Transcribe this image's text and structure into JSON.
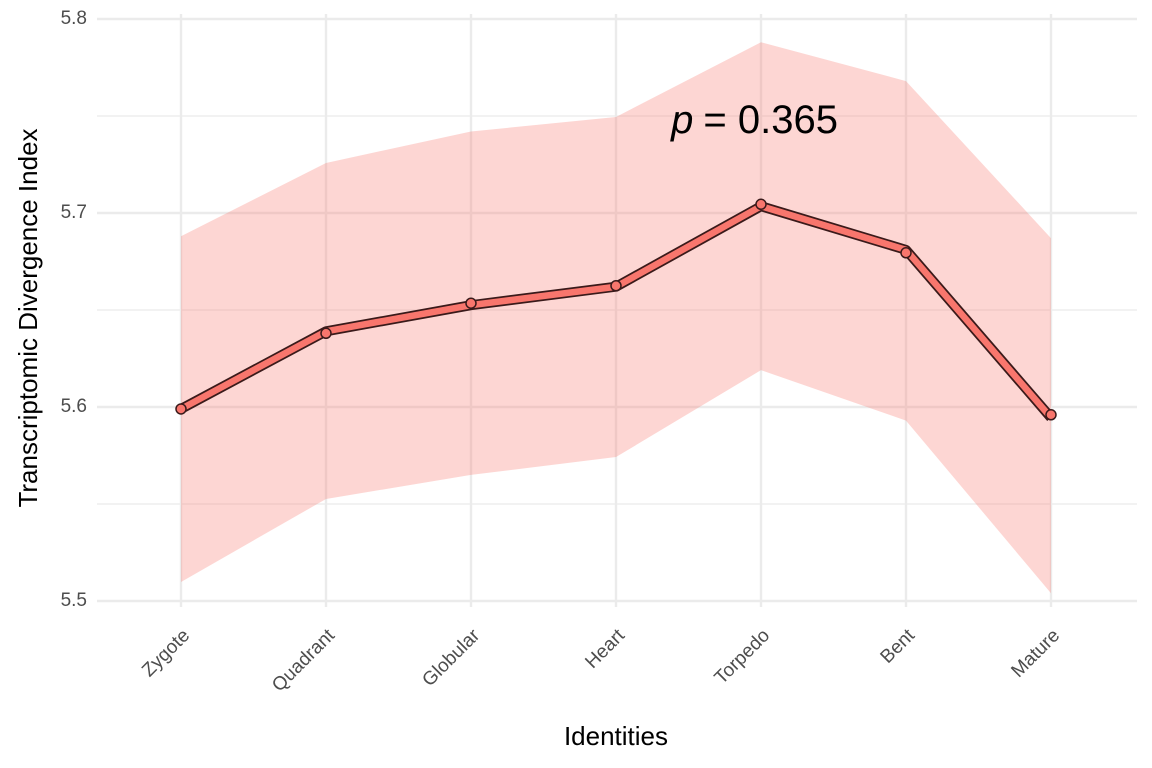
{
  "chart_data": {
    "type": "line",
    "x_label": "Identities",
    "y_label": "Transcriptomic Divergence Index",
    "annotation": {
      "italic": "p",
      "text": "= 0.365"
    },
    "categories": [
      "Zygote",
      "Quadrant",
      "Globular",
      "Heart",
      "Torpedo",
      "Bent",
      "Mature"
    ],
    "values": [
      5.599,
      5.639,
      5.6525,
      5.662,
      5.7035,
      5.681,
      5.5945
    ],
    "point_values": [
      5.599,
      5.638,
      5.6535,
      5.6625,
      5.7045,
      5.6795,
      5.596
    ],
    "lower": [
      5.5098,
      5.5526,
      5.565,
      5.5742,
      5.619,
      5.593,
      5.504
    ],
    "upper": [
      5.688,
      5.7258,
      5.742,
      5.7495,
      5.788,
      5.768,
      5.687
    ],
    "color": "#f8766d",
    "outline_color": "#3a1a1a",
    "ylim": [
      5.5,
      5.8
    ],
    "yticks": [
      5.5,
      5.6,
      5.7,
      5.8
    ],
    "minor_yticks": [
      5.55,
      5.65,
      5.75
    ],
    "grid": true
  }
}
